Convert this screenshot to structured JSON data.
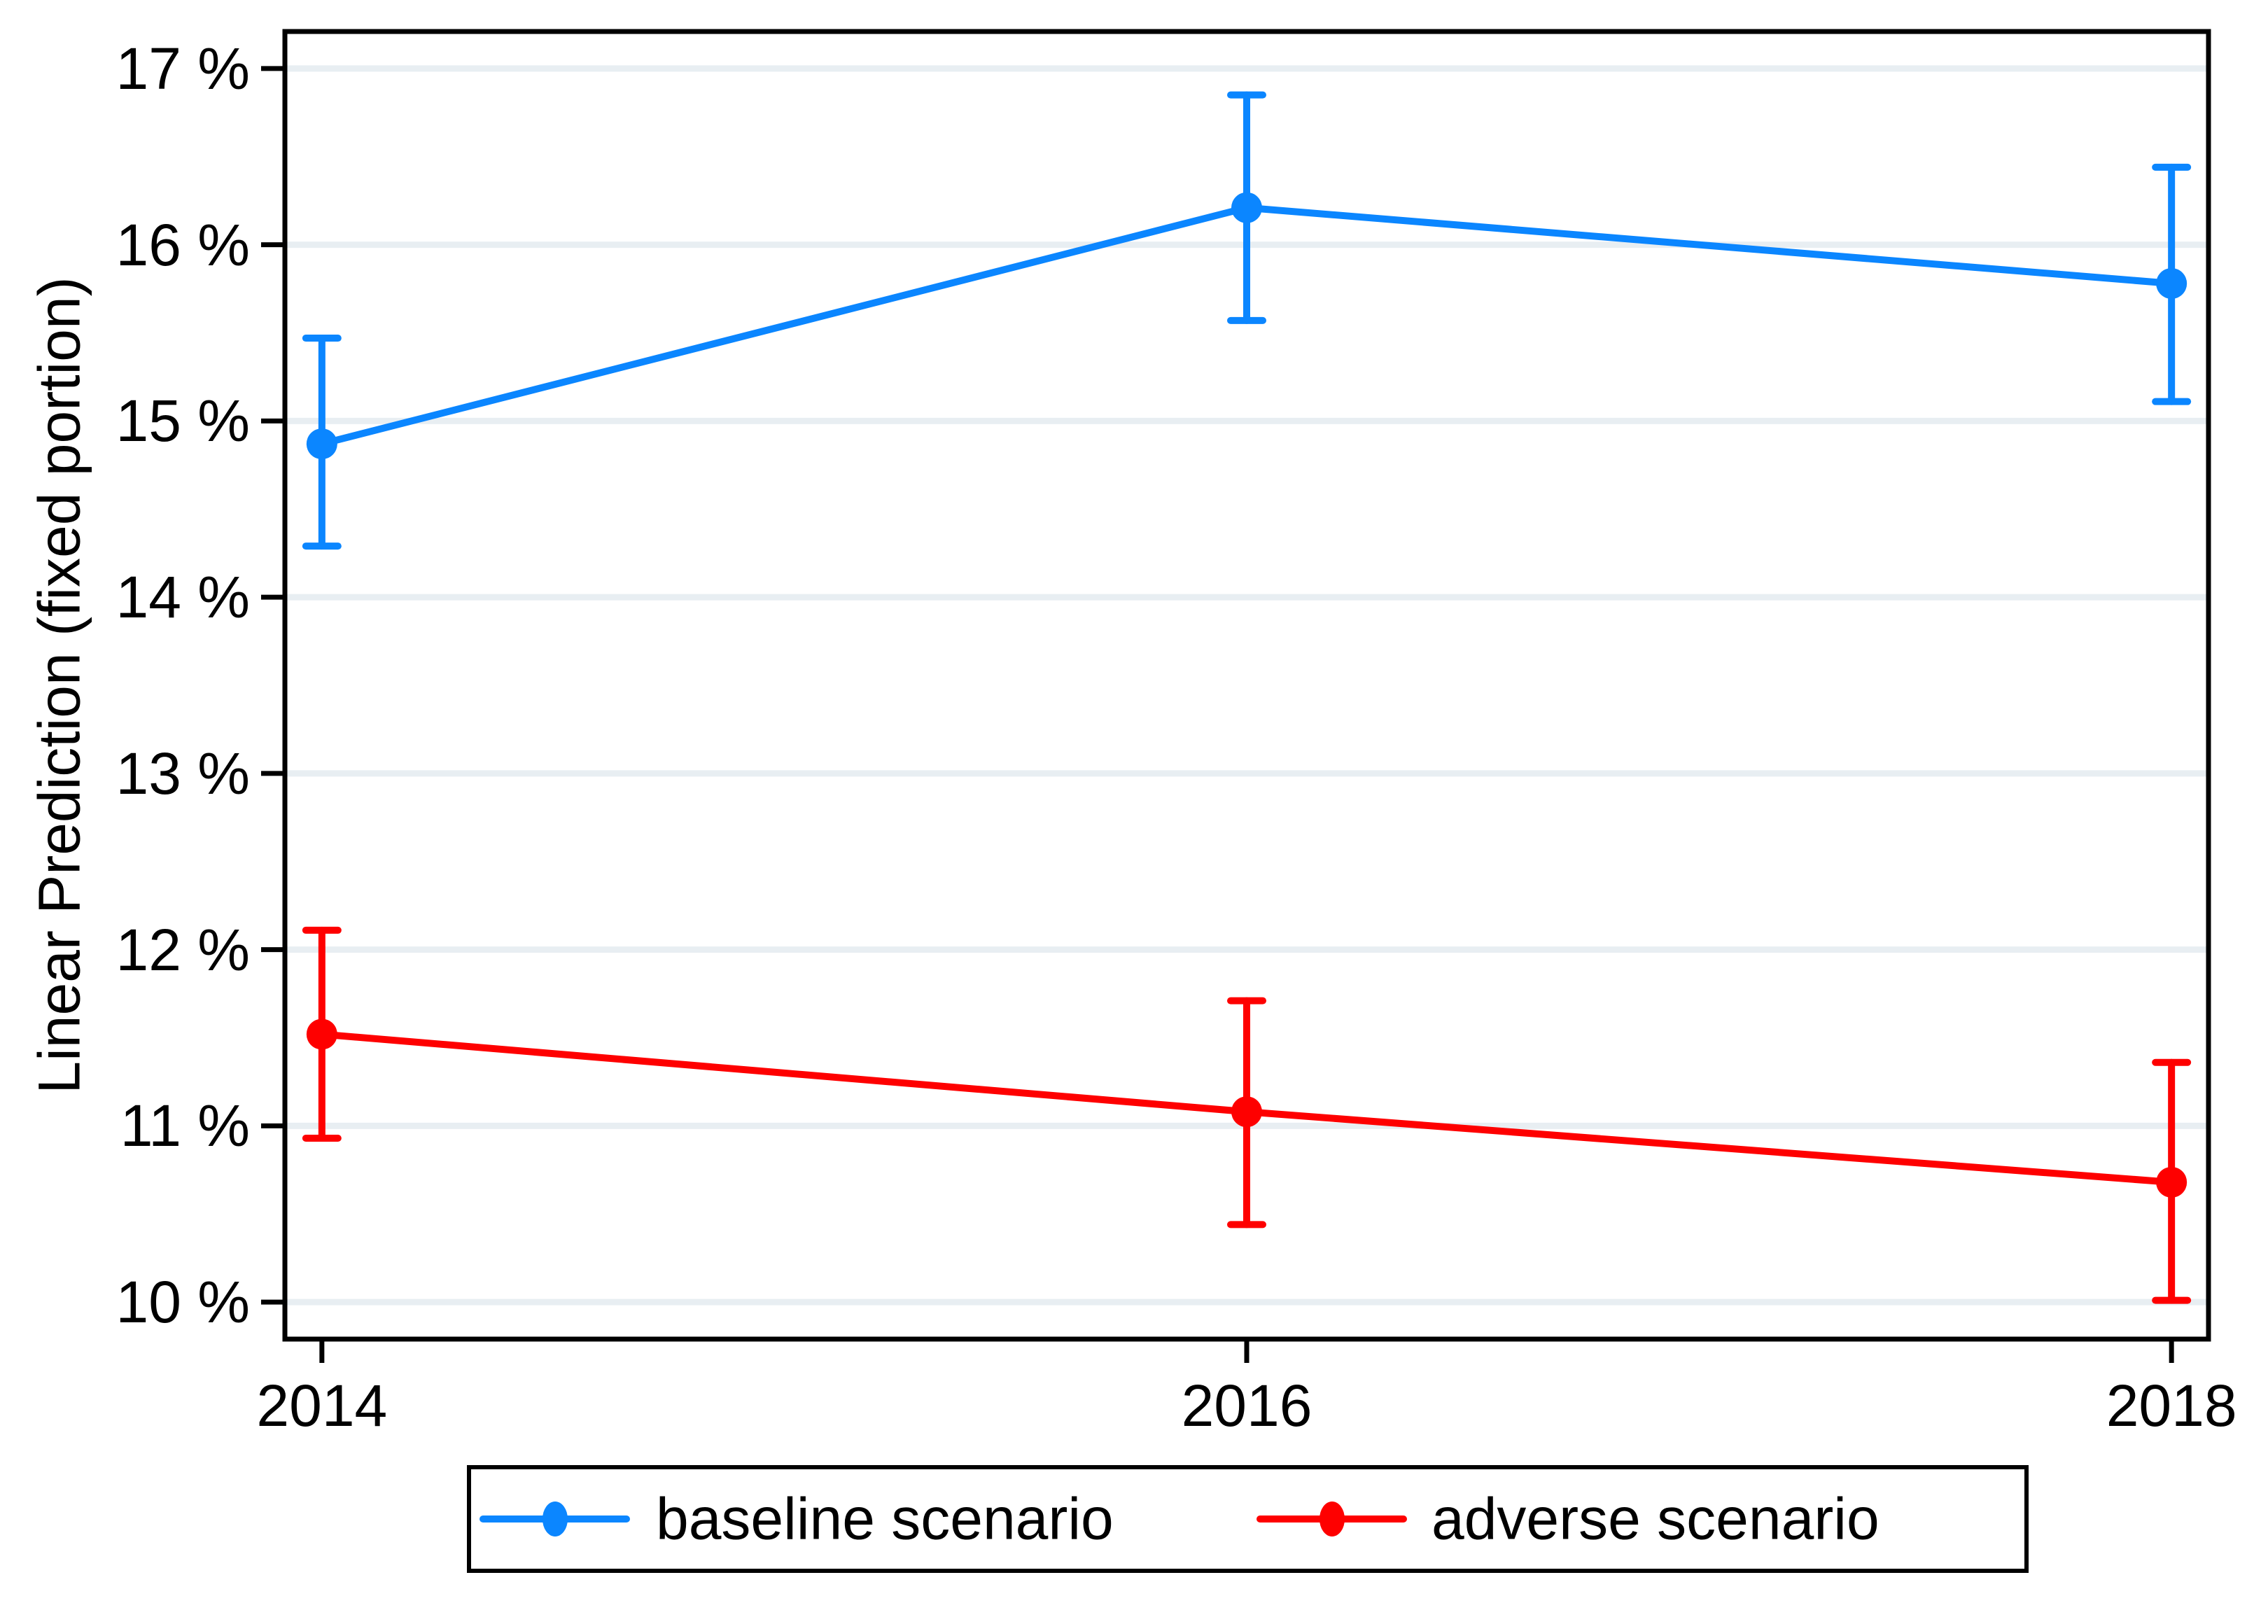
{
  "chart_data": {
    "type": "line",
    "title": "",
    "xlabel": "",
    "ylabel": "Linear Prediction (fixed portion)",
    "x": [
      2014,
      2016,
      2018
    ],
    "x_tick_labels": [
      "2014",
      "2016",
      "2018"
    ],
    "y_ticks": [
      17,
      16,
      15,
      14,
      13,
      12,
      11,
      10
    ],
    "y_tick_suffix": " %",
    "ylim": [
      9.79,
      17.21
    ],
    "xlim": [
      2013.92,
      2018.08
    ],
    "grid": "horizontal",
    "legend_position": "bottom",
    "series": [
      {
        "name": "baseline scenario",
        "color": "#0b86ff",
        "values": [
          14.87,
          16.21,
          15.78
        ],
        "ci_low": [
          14.29,
          15.57,
          15.11
        ],
        "ci_high": [
          15.47,
          16.85,
          16.44
        ]
      },
      {
        "name": "adverse scenario",
        "color": "#fe0000",
        "values": [
          11.52,
          11.08,
          10.68
        ],
        "ci_low": [
          10.93,
          10.44,
          10.01
        ],
        "ci_high": [
          12.11,
          11.71,
          11.36
        ]
      }
    ]
  },
  "colors": {
    "background": "#ffffff",
    "axis": "#000000",
    "grid": "#e8eef2"
  }
}
